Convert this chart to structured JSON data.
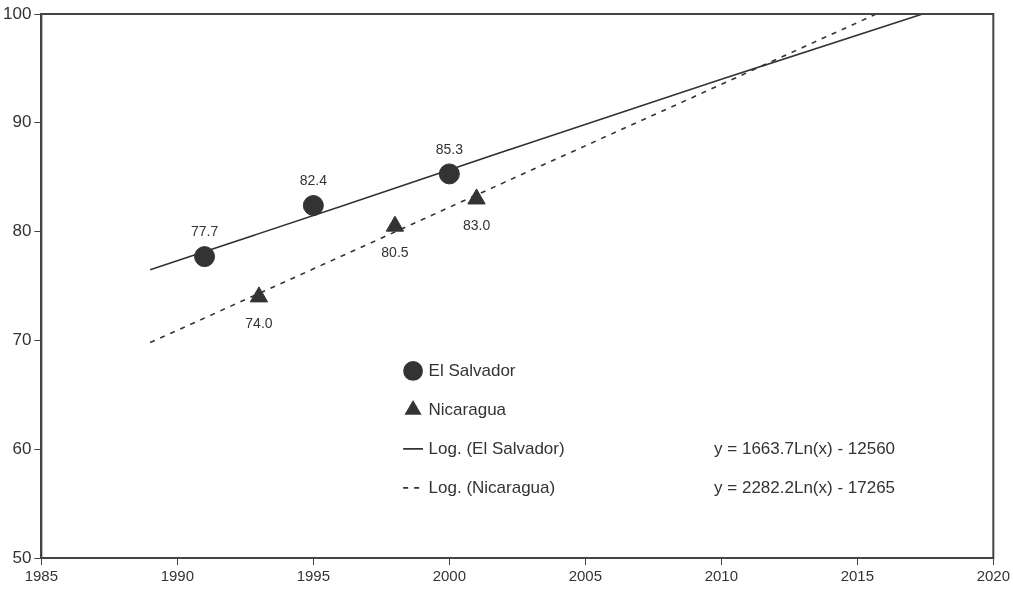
{
  "chart_data": {
    "type": "scatter",
    "xlim": [
      1985,
      2020
    ],
    "xticks": [
      1985,
      1990,
      1995,
      2000,
      2005,
      2010,
      2015,
      2020
    ],
    "ylim": [
      50,
      100
    ],
    "yticks": [
      50,
      60,
      70,
      80,
      90,
      100
    ],
    "grid": false,
    "legend": "bottom",
    "series": [
      {
        "name": "El Salvador",
        "marker": "circle",
        "color": "#333333",
        "x": [
          1991,
          1995,
          2000
        ],
        "values": [
          77.7,
          82.4,
          85.3
        ],
        "value_labels": [
          "77.7",
          "82.4",
          "85.3"
        ]
      },
      {
        "name": "Nicaragua",
        "marker": "triangle",
        "color": "#333333",
        "x": [
          1993,
          1998,
          2001
        ],
        "values": [
          74.0,
          80.5,
          83.0
        ],
        "value_labels": [
          "74.0",
          "80.5",
          "83.0"
        ]
      },
      {
        "name": "Log. (El Salvador)",
        "type": "line",
        "marker": "none",
        "line_style": "solid",
        "color": "#333333",
        "x": [
          1989,
          1996,
          2003,
          2010,
          2017.4
        ],
        "values": [
          76.5,
          82.3,
          88.2,
          94.0,
          100
        ]
      },
      {
        "name": "Log. (Nicaragua)",
        "type": "line",
        "marker": "none",
        "line_style": "dashed",
        "color": "#333333",
        "x": [
          1989,
          1996,
          2002,
          2009,
          2015.7
        ],
        "values": [
          69.8,
          77.7,
          84.5,
          92.4,
          100
        ]
      }
    ],
    "annotations": [
      "y = 1663.7Ln(x) - 12560",
      "y = 2282.2Ln(x) - 17265"
    ]
  }
}
